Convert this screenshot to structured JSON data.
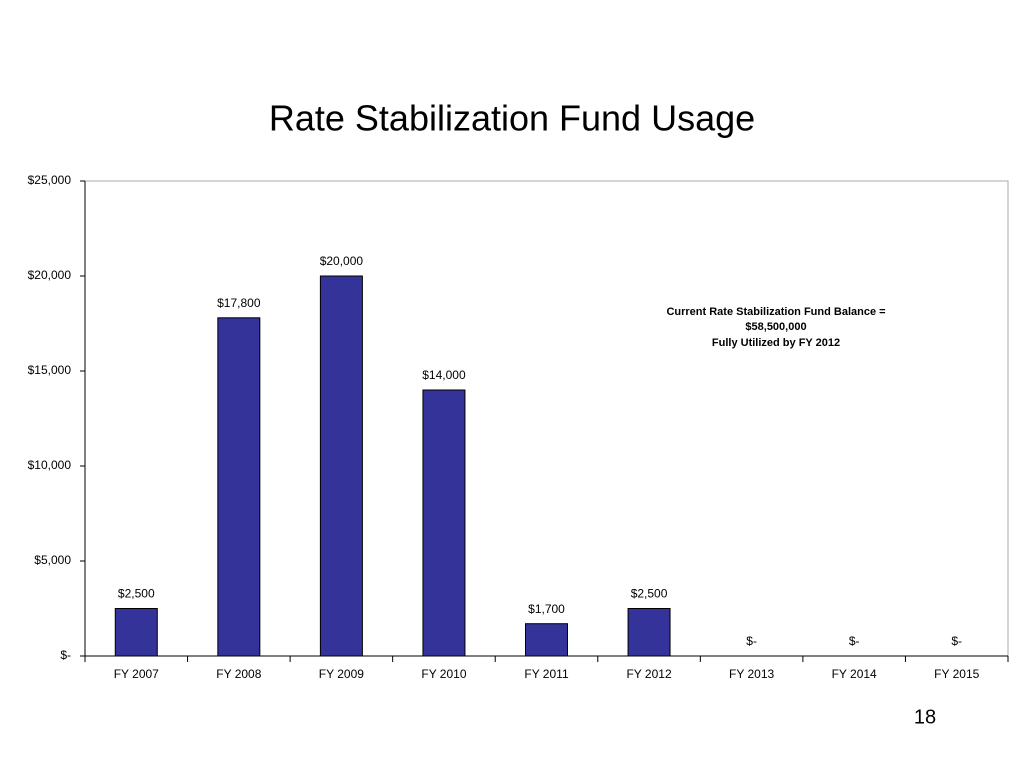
{
  "chart_data": {
    "type": "bar",
    "title": "Rate Stabilization Fund Usage",
    "categories": [
      "FY 2007",
      "FY 2008",
      "FY 2009",
      "FY 2010",
      "FY 2011",
      "FY 2012",
      "FY 2013",
      "FY 2014",
      "FY 2015"
    ],
    "values": [
      2500,
      17800,
      20000,
      14000,
      1700,
      2500,
      0,
      0,
      0
    ],
    "value_labels": [
      "$2,500",
      "$17,800",
      "$20,000",
      "$14,000",
      "$1,700",
      "$2,500",
      "$-",
      "$-",
      "$-"
    ],
    "color": "#333399",
    "ylim": [
      0,
      25000
    ],
    "yticks": [
      {
        "value": 0,
        "label": "$-"
      },
      {
        "value": 5000,
        "label": "$5,000"
      },
      {
        "value": 10000,
        "label": "$10,000"
      },
      {
        "value": 15000,
        "label": "$15,000"
      },
      {
        "value": 20000,
        "label": "$20,000"
      },
      {
        "value": 25000,
        "label": "$25,000"
      }
    ],
    "grid": false,
    "annotation": [
      "Current Rate Stabilization Fund Balance =",
      "$58,500,000",
      "Fully Utilized by FY 2012"
    ]
  },
  "page_number": "18"
}
